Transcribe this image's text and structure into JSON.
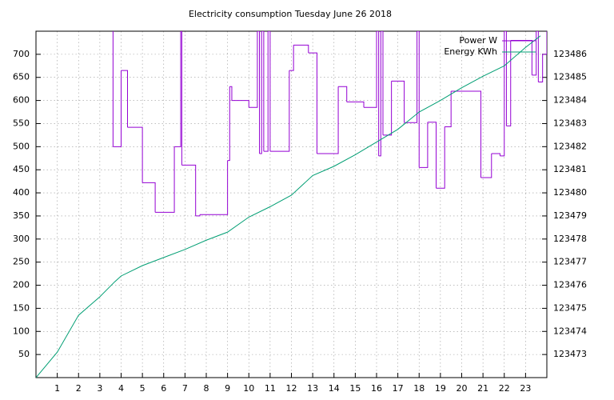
{
  "chart_data": {
    "type": "line",
    "title": "Electricity consumption Tuesday June 26 2018",
    "xlim": [
      0,
      24
    ],
    "xticks": [
      1,
      2,
      3,
      4,
      5,
      6,
      7,
      8,
      9,
      10,
      11,
      12,
      13,
      14,
      15,
      16,
      17,
      18,
      19,
      20,
      21,
      22,
      23
    ],
    "ylim": [
      0,
      750
    ],
    "yticks": [
      50,
      100,
      150,
      200,
      250,
      300,
      350,
      400,
      450,
      500,
      550,
      600,
      650,
      700
    ],
    "y2lim": [
      123472,
      123487
    ],
    "y2ticks": [
      123473,
      123474,
      123475,
      123476,
      123477,
      123478,
      123479,
      123480,
      123481,
      123482,
      123483,
      123484,
      123485,
      123486
    ],
    "grid": true,
    "legend": "top-right",
    "series": [
      {
        "name": "Power W",
        "color": "#9400d3",
        "steps": true,
        "x": [
          3.6,
          3.62,
          4.0,
          4.3,
          5.0,
          5.6,
          6.5,
          6.8,
          6.85,
          7.5,
          7.7,
          9.0,
          9.1,
          9.2,
          10.0,
          10.4,
          10.5,
          10.6,
          10.7,
          10.9,
          11.0,
          11.9,
          12.1,
          12.8,
          13.2,
          14.2,
          14.6,
          15.4,
          16.0,
          16.1,
          16.2,
          16.3,
          16.7,
          17.3,
          17.9,
          18.0,
          18.4,
          18.8,
          19.2,
          19.5,
          20.9,
          21.4,
          21.8,
          22.0,
          22.1,
          22.3,
          23.3,
          23.5,
          23.6,
          23.8,
          24.0
        ],
        "values": [
          750,
          500,
          665,
          542,
          422,
          358,
          500,
          750,
          460,
          350,
          353,
          470,
          630,
          600,
          585,
          750,
          485,
          750,
          490,
          750,
          490,
          665,
          720,
          703,
          485,
          630,
          597,
          585,
          750,
          480,
          750,
          525,
          642,
          552,
          750,
          455,
          553,
          410,
          543,
          620,
          433,
          485,
          480,
          750,
          545,
          730,
          655,
          750,
          640,
          700,
          750
        ]
      },
      {
        "name": "Energy KWh",
        "color": "#009e73",
        "axis": "y2",
        "x": [
          0,
          1,
          2,
          3,
          3.7,
          4,
          5,
          6,
          7,
          8,
          9,
          10,
          11,
          12,
          13,
          14,
          15,
          16,
          17,
          18,
          19,
          20,
          21,
          22,
          23,
          23.7
        ],
        "values": [
          123472.0,
          123473.1,
          123474.7,
          123475.5,
          123476.15,
          123476.4,
          123476.85,
          123477.2,
          123477.55,
          123477.95,
          123478.3,
          123478.95,
          123479.4,
          123479.9,
          123480.75,
          123481.15,
          123481.65,
          123482.2,
          123482.75,
          123483.5,
          123484.0,
          123484.55,
          123485.05,
          123485.5,
          123486.3,
          123486.8
        ]
      }
    ]
  }
}
